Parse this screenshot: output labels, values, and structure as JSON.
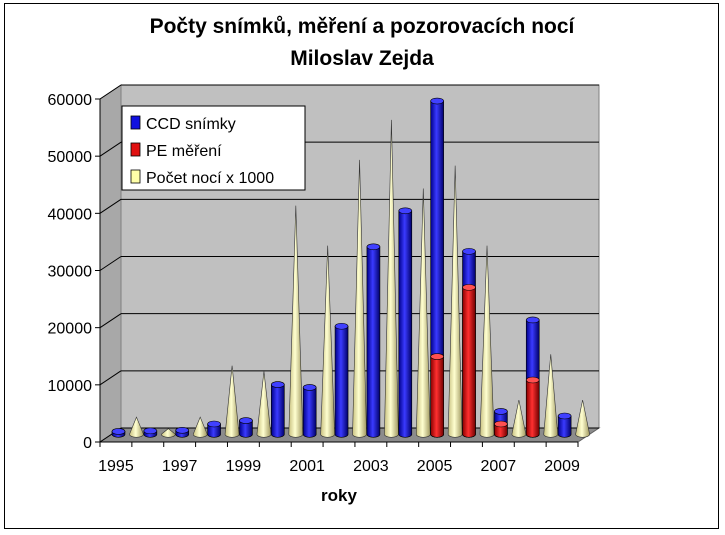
{
  "chart_data": {
    "type": "bar",
    "title_line1": "Počty snímků, měření a pozorovacích nocí",
    "title_line2": "Miloslav Zejda",
    "xlabel": "roky",
    "ylabel": "",
    "categories": [
      "1995",
      "1996",
      "1997",
      "1998",
      "1999",
      "2000",
      "2001",
      "2002",
      "2003",
      "2004",
      "2005",
      "2006",
      "2007",
      "2008",
      "2009"
    ],
    "x_tick_labels": [
      "1995",
      "1997",
      "1999",
      "2001",
      "2003",
      "2005",
      "2007",
      "2009"
    ],
    "y_ticks": [
      0,
      10000,
      20000,
      30000,
      40000,
      50000,
      60000
    ],
    "ylim": [
      0,
      60000
    ],
    "series": [
      {
        "name": "CCD snímky",
        "shape": "cylinder",
        "color": "#1010e0",
        "values": [
          500,
          600,
          700,
          1800,
          2400,
          8700,
          8200,
          18900,
          32800,
          39100,
          58300,
          32000,
          4000,
          20000,
          3200
        ]
      },
      {
        "name": "PE měření",
        "shape": "cylinder",
        "color": "#e01010",
        "values": [
          0,
          0,
          0,
          0,
          0,
          0,
          0,
          0,
          0,
          0,
          13600,
          25700,
          1800,
          9500,
          0
        ]
      },
      {
        "name": "Počet nocí x 1000",
        "shape": "cone",
        "color": "#ffffa8",
        "values": [
          3000,
          1000,
          3000,
          12000,
          11000,
          40000,
          33000,
          48000,
          55000,
          43000,
          47000,
          33000,
          6000,
          14000,
          6000
        ]
      }
    ],
    "legend_position": "top-left",
    "grid": true,
    "plot_background": "#c0c0c0"
  }
}
